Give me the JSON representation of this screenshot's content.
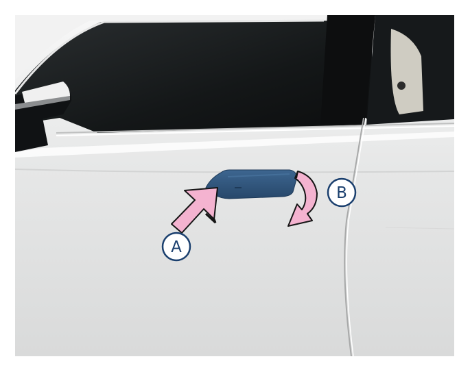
{
  "callouts": {
    "a": {
      "label": "A",
      "meaning": ""
    },
    "b": {
      "label": "B",
      "meaning": ""
    }
  },
  "colors": {
    "body_paint": "#e9eaea",
    "glass": "#151819",
    "handle": "#2f5479",
    "arrow_fill": "#f4b3d0",
    "arrow_stroke": "#151515",
    "callout_ring": "#1a3f6e"
  },
  "icons": {
    "arrow_a": "push-arrow-icon",
    "arrow_b": "rotate-arrow-icon"
  }
}
